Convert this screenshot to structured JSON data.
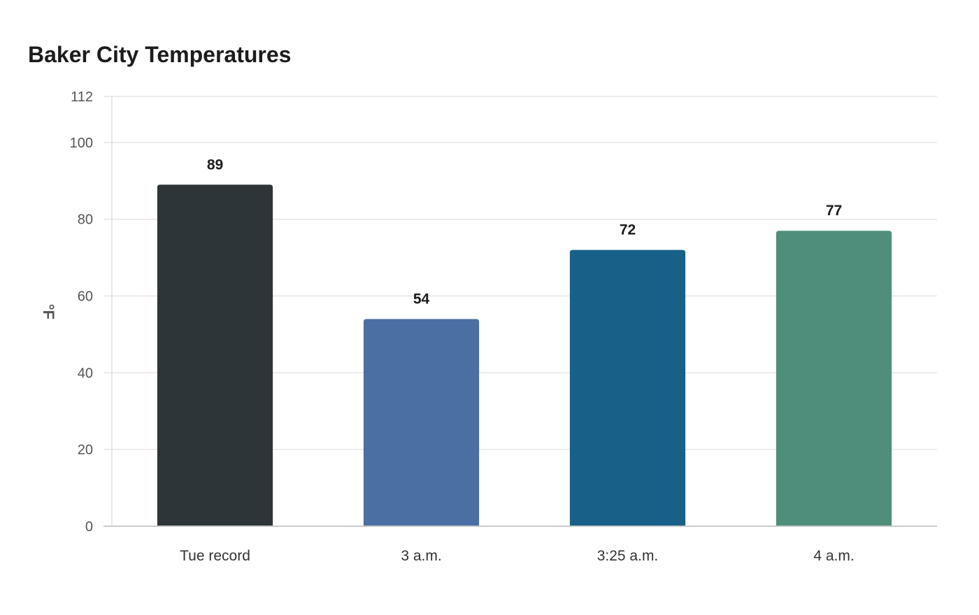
{
  "chart_data": {
    "type": "bar",
    "title": "Baker City Temperatures",
    "xlabel": "",
    "ylabel": "°F",
    "categories": [
      "Tue record",
      "3 a.m.",
      "3:25 a.m.",
      "4 a.m."
    ],
    "values": [
      89,
      54,
      72,
      77
    ],
    "colors": [
      "#2e3538",
      "#4b6fa3",
      "#186088",
      "#4f8e7b"
    ],
    "ylim": [
      0,
      112
    ],
    "yticks": [
      0,
      20,
      40,
      60,
      80,
      100,
      112
    ],
    "grid": true,
    "legend": "none"
  }
}
